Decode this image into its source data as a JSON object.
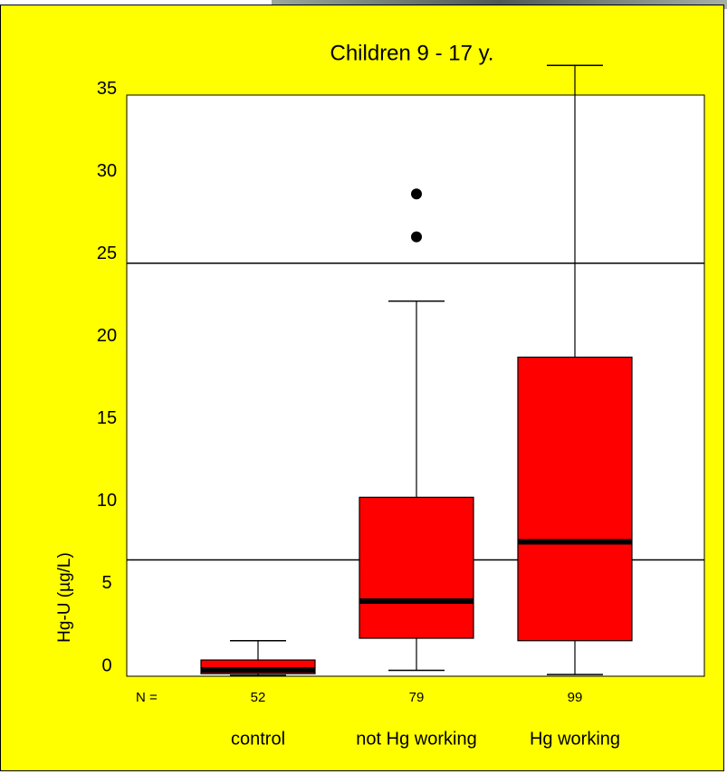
{
  "chart_data": {
    "type": "box",
    "title": "Children 9 - 17 y.",
    "y_label": "Hg-U (µg/L)",
    "n_label": "N =",
    "categories": [
      "control",
      "not Hg working",
      "Hg working"
    ],
    "n": [
      52,
      79,
      99
    ],
    "boxes": [
      {
        "min": 0,
        "q1": 0.1,
        "median": 0.33,
        "q3": 0.93,
        "max": 2.1
      },
      {
        "min": 0.3,
        "q1": 2.25,
        "median": 4.5,
        "q3": 10.8,
        "max": 22.7,
        "outliers": [
          26.6,
          29.2
        ]
      },
      {
        "min": 0.05,
        "q1": 2.1,
        "median": 8.1,
        "q3": 19.3,
        "max": 37
      }
    ],
    "color": "#ff0000",
    "background": "#ffff00",
    "reference_lines": [
      7,
      25
    ],
    "ylim": [
      0,
      35.2
    ],
    "yticks": [
      0,
      5,
      10,
      15,
      20,
      25,
      30,
      35
    ]
  }
}
